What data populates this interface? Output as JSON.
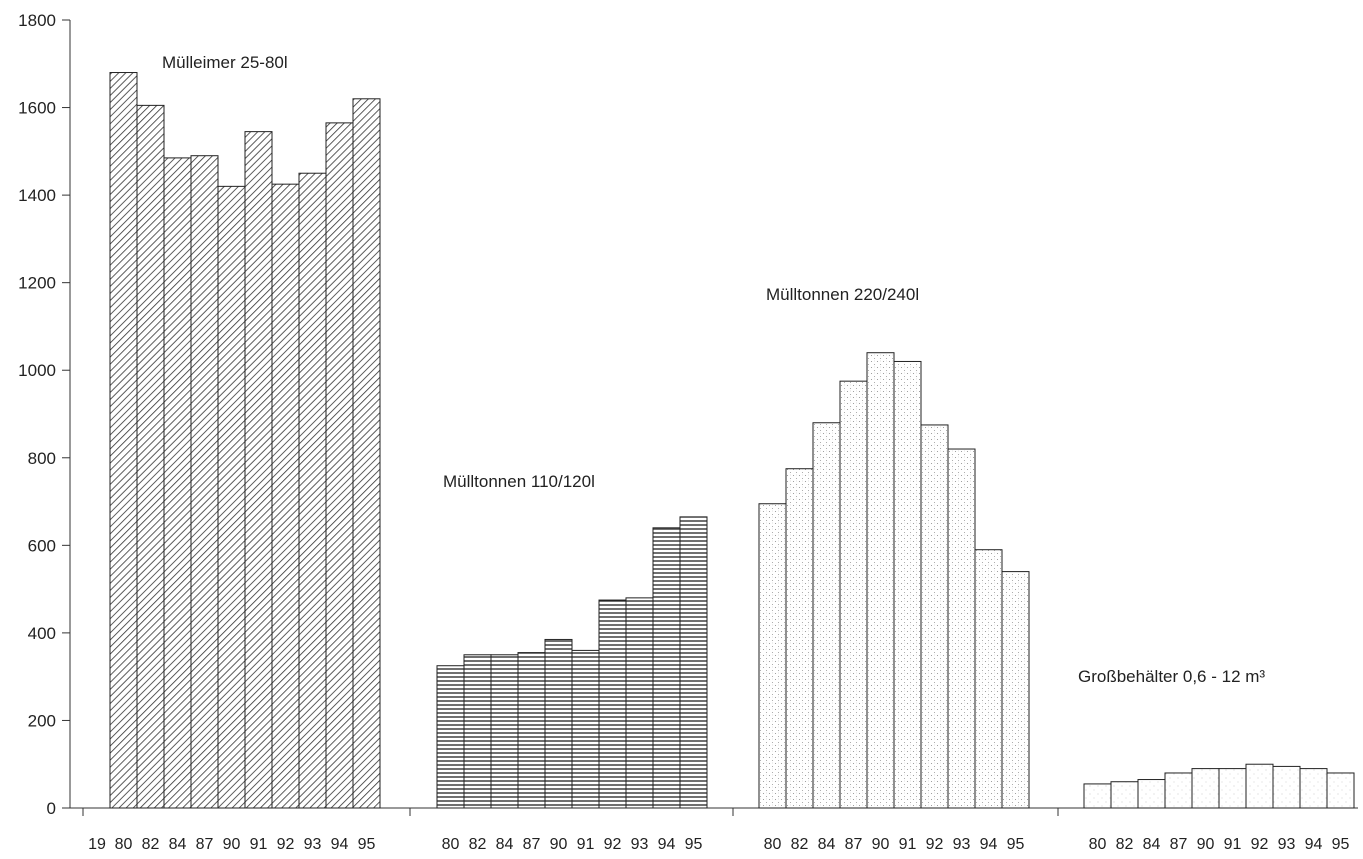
{
  "chart_data": {
    "type": "bar",
    "title": "",
    "xlabel": "",
    "ylabel": "",
    "ylim": [
      0,
      1800
    ],
    "yticks": [
      0,
      200,
      400,
      600,
      800,
      1000,
      1200,
      1400,
      1600,
      1800
    ],
    "grid": false,
    "legend": "none",
    "year_prefix": "19",
    "groups": [
      {
        "name": "Mülleimer 25-80l",
        "pattern": "diagonal-hatch",
        "categories": [
          "80",
          "82",
          "84",
          "87",
          "90",
          "91",
          "92",
          "93",
          "94",
          "95"
        ],
        "values": [
          1680,
          1605,
          1485,
          1490,
          1420,
          1545,
          1425,
          1450,
          1565,
          1620
        ]
      },
      {
        "name": "Mülltonnen 110/120l",
        "pattern": "horizontal-lines",
        "categories": [
          "80",
          "82",
          "84",
          "87",
          "90",
          "91",
          "92",
          "93",
          "94",
          "95"
        ],
        "values": [
          325,
          350,
          350,
          355,
          385,
          360,
          475,
          480,
          640,
          665
        ]
      },
      {
        "name": "Mülltonnen 220/240l",
        "pattern": "dotted",
        "categories": [
          "80",
          "82",
          "84",
          "87",
          "90",
          "91",
          "92",
          "93",
          "94",
          "95"
        ],
        "values": [
          695,
          775,
          880,
          975,
          1040,
          1020,
          875,
          820,
          590,
          540
        ]
      },
      {
        "name": "Großbehälter 0,6 - 12 m³",
        "pattern": "light-dotted",
        "categories": [
          "80",
          "82",
          "84",
          "87",
          "90",
          "91",
          "92",
          "93",
          "94",
          "95"
        ],
        "values": [
          55,
          60,
          65,
          80,
          90,
          90,
          100,
          95,
          90,
          80
        ]
      }
    ]
  }
}
